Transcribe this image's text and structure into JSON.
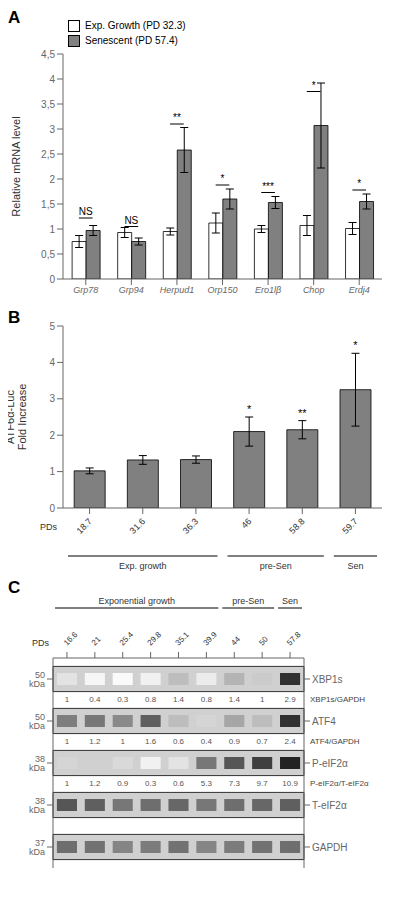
{
  "chart_data": [
    {
      "type": "bar",
      "title": "A",
      "categories": [
        "Grp78",
        "Grp94",
        "Herpud1",
        "Orp150",
        "Ero1lβ",
        "Chop",
        "Erdj4"
      ],
      "series": [
        {
          "name": "Exp. Growth (PD 32.3)",
          "color": "#ffffff",
          "values": [
            0.75,
            0.93,
            0.95,
            1.12,
            1.0,
            1.07,
            1.01
          ],
          "errors": [
            0.12,
            0.1,
            0.07,
            0.2,
            0.07,
            0.2,
            0.12
          ]
        },
        {
          "name": "Senescent (PD 57.4)",
          "color": "#808080",
          "values": [
            0.97,
            0.75,
            2.58,
            1.6,
            1.53,
            3.07,
            1.55
          ],
          "errors": [
            0.1,
            0.07,
            0.45,
            0.2,
            0.12,
            0.85,
            0.15
          ]
        }
      ],
      "annotations": [
        {
          "category": "Grp78",
          "text": "NS",
          "y": 1.22
        },
        {
          "category": "Grp94",
          "text": "NS",
          "y": 1.05
        },
        {
          "category": "Herpud1",
          "text": "**",
          "y": 3.1
        },
        {
          "category": "Orp150",
          "text": "*",
          "y": 1.88
        },
        {
          "category": "Ero1lβ",
          "text": "***",
          "y": 1.73
        },
        {
          "category": "Chop",
          "text": "*",
          "y": 3.75
        },
        {
          "category": "Erdj4",
          "text": "*",
          "y": 1.78
        }
      ],
      "ylabel": "Relative mRNA level",
      "ylim": [
        0,
        4.5
      ],
      "yticks": [
        0,
        {
          "value": 0.5,
          "label": "0,5"
        },
        1,
        {
          "value": 1.5,
          "label": "1,5"
        },
        2,
        {
          "value": 2.5,
          "label": "2,5"
        },
        3,
        {
          "value": 3.5,
          "label": "3,5"
        },
        4,
        {
          "value": 4.5,
          "label": "4,5"
        }
      ],
      "legend": "upper left",
      "grid": false
    },
    {
      "type": "bar",
      "title": "B",
      "categories": [
        "18.7",
        "31.6",
        "36.3",
        "46",
        "58.8",
        "59.7"
      ],
      "values": [
        1.02,
        1.32,
        1.33,
        2.1,
        2.15,
        3.25
      ],
      "errors": [
        0.08,
        0.12,
        0.1,
        0.4,
        0.25,
        1.0
      ],
      "significance": [
        null,
        null,
        null,
        "*",
        "**",
        "*"
      ],
      "color": "#808080",
      "xlabel": "PDs",
      "ylabel": "ATF6α-Luc\nFold Increase",
      "ylim": [
        0,
        5
      ],
      "yticks": [
        0,
        1,
        2,
        3,
        4,
        5
      ],
      "groups": [
        {
          "label": "Exp. growth",
          "categories": [
            "18.7",
            "31.6",
            "36.3"
          ]
        },
        {
          "label": "pre-Sen",
          "categories": [
            "46",
            "58.8"
          ]
        },
        {
          "label": "Sen",
          "categories": [
            "59.7"
          ]
        }
      ],
      "grid": false
    },
    {
      "type": "heatmap",
      "title": "C",
      "categories": [
        "16.6",
        "21",
        "25.4",
        "29.8",
        "35.1",
        "39.9",
        "44",
        "50",
        "57.8"
      ],
      "xlabel": "PDs",
      "groups": [
        {
          "label": "Exponential growth",
          "categories": [
            "16.6",
            "21",
            "25.4",
            "29.8",
            "35.1",
            "39.9"
          ]
        },
        {
          "label": "pre-Sen",
          "categories": [
            "44",
            "50"
          ]
        },
        {
          "label": "Sen",
          "categories": [
            "57.8"
          ]
        }
      ],
      "zlim": [
        0,
        1
      ],
      "rows": [
        {
          "label": "XBP1s",
          "kda": "50 kDa",
          "ratio_label": "XBP1s/GAPDH",
          "ratios": [
            "1",
            "0.4",
            "0.3",
            "0.8",
            "1.4",
            "0.8",
            "1.4",
            "1",
            "2.9"
          ],
          "cells": [
            0.12,
            0.04,
            0.02,
            0.06,
            0.28,
            0.08,
            0.32,
            0.22,
            0.88
          ]
        },
        {
          "label": "ATF4",
          "kda": "50 kDa",
          "ratio_label": "ATF4/GAPDH",
          "ratios": [
            "1",
            "1.2",
            "1",
            "1.6",
            "0.6",
            "0.4",
            "0.9",
            "0.7",
            "2.4"
          ],
          "cells": [
            0.55,
            0.58,
            0.5,
            0.68,
            0.28,
            0.18,
            0.38,
            0.28,
            0.88
          ]
        },
        {
          "label": "P-eIF2α",
          "kda": "38 kDa",
          "ratio_label": "P-eIF2α/T-eIF2α",
          "ratios": [
            "1",
            "1.2",
            "0.9",
            "0.3",
            "0.6",
            "5.3",
            "7.3",
            "9.7",
            "10.9"
          ],
          "cells": [
            0.18,
            0.2,
            0.16,
            0.06,
            0.12,
            0.58,
            0.72,
            0.82,
            0.94
          ]
        },
        {
          "label": "T-eIF2α",
          "kda": "38 kDa",
          "cells": [
            0.72,
            0.68,
            0.58,
            0.62,
            0.65,
            0.58,
            0.62,
            0.65,
            0.68
          ]
        },
        {
          "label": "GAPDH",
          "kda": "37 kDa",
          "cells": [
            0.62,
            0.6,
            0.52,
            0.56,
            0.6,
            0.52,
            0.56,
            0.6,
            0.62
          ]
        }
      ]
    }
  ]
}
